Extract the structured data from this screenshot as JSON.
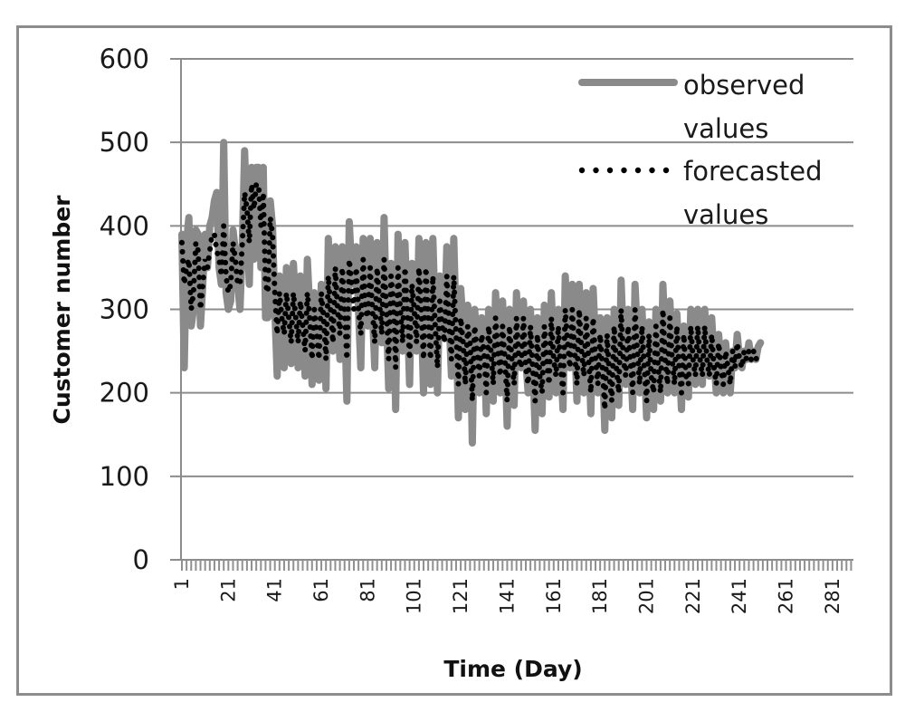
{
  "chart_data": {
    "type": "line",
    "title": "",
    "xlabel": "Time (Day)",
    "ylabel": "Customer number",
    "ylim": [
      0,
      600
    ],
    "yticks": [
      0,
      100,
      200,
      300,
      400,
      500,
      600
    ],
    "xlim": [
      1,
      290
    ],
    "xtick_labels": [
      "1",
      "21",
      "41",
      "61",
      "81",
      "101",
      "121",
      "141",
      "161",
      "181",
      "201",
      "221",
      "241",
      "261",
      "281"
    ],
    "grid": "horizontal",
    "legend_position": "upper right",
    "series": [
      {
        "name": "observed values",
        "style": "solid",
        "color": "#8a8a8a",
        "values": [
          390,
          230,
          380,
          410,
          280,
          300,
          395,
          390,
          280,
          330,
          390,
          350,
          400,
          410,
          430,
          440,
          350,
          330,
          500,
          320,
          300,
          310,
          395,
          370,
          330,
          300,
          380,
          490,
          400,
          330,
          470,
          360,
          470,
          470,
          350,
          470,
          290,
          290,
          430,
          400,
          300,
          220,
          340,
          300,
          230,
          350,
          300,
          235,
          355,
          300,
          230,
          340,
          290,
          220,
          360,
          300,
          210,
          320,
          285,
          215,
          330,
          300,
          205,
          385,
          300,
          250,
          375,
          300,
          240,
          375,
          300,
          190,
          405,
          350,
          330,
          375,
          300,
          230,
          385,
          300,
          280,
          385,
          300,
          230,
          380,
          320,
          260,
          410,
          300,
          205,
          355,
          320,
          180,
          390,
          300,
          250,
          380,
          300,
          210,
          355,
          300,
          250,
          385,
          300,
          200,
          380,
          300,
          210,
          385,
          290,
          200,
          340,
          300,
          270,
          375,
          290,
          220,
          385,
          280,
          170,
          325,
          280,
          180,
          305,
          280,
          140,
          300,
          260,
          200,
          290,
          260,
          175,
          300,
          260,
          190,
          320,
          260,
          200,
          310,
          250,
          160,
          300,
          250,
          185,
          320,
          250,
          230,
          310,
          240,
          200,
          300,
          240,
          155,
          290,
          230,
          175,
          305,
          260,
          195,
          320,
          250,
          200,
          300,
          240,
          180,
          340,
          280,
          230,
          330,
          270,
          190,
          330,
          270,
          200,
          320,
          260,
          175,
          325,
          260,
          200,
          290,
          240,
          155,
          290,
          230,
          170,
          300,
          240,
          185,
          335,
          260,
          210,
          300,
          250,
          180,
          330,
          270,
          200,
          300,
          240,
          170,
          285,
          230,
          180,
          300,
          240,
          190,
          330,
          260,
          200,
          310,
          250,
          200,
          295,
          240,
          180,
          280,
          230,
          195,
          300,
          250,
          210,
          300,
          250,
          210,
          300,
          250,
          220,
          290,
          240,
          200,
          270,
          230,
          200,
          260,
          230,
          200,
          250,
          230,
          270,
          240,
          230,
          250,
          240,
          260,
          240,
          250,
          240,
          255,
          260
        ],
        "note": "Approximate daily values read from plot"
      },
      {
        "name": "forecasted values",
        "style": "dotted",
        "color": "#000000",
        "values": [
          380,
          330,
          350,
          360,
          300,
          320,
          380,
          370,
          300,
          330,
          360,
          350,
          370,
          390,
          390,
          370,
          360,
          340,
          400,
          340,
          320,
          330,
          380,
          360,
          330,
          330,
          380,
          440,
          420,
          380,
          450,
          420,
          450,
          450,
          400,
          440,
          330,
          320,
          410,
          390,
          320,
          270,
          320,
          290,
          270,
          320,
          290,
          260,
          320,
          290,
          260,
          310,
          280,
          250,
          320,
          290,
          240,
          300,
          270,
          240,
          320,
          290,
          240,
          340,
          300,
          260,
          350,
          300,
          270,
          350,
          300,
          240,
          360,
          330,
          300,
          350,
          300,
          270,
          360,
          300,
          290,
          350,
          300,
          260,
          350,
          310,
          270,
          360,
          300,
          240,
          340,
          310,
          230,
          350,
          300,
          260,
          350,
          300,
          240,
          330,
          300,
          260,
          350,
          300,
          240,
          350,
          290,
          240,
          340,
          280,
          230,
          310,
          280,
          260,
          340,
          280,
          240,
          340,
          270,
          210,
          290,
          260,
          210,
          280,
          260,
          190,
          280,
          250,
          220,
          270,
          250,
          200,
          280,
          250,
          210,
          290,
          250,
          220,
          280,
          240,
          190,
          280,
          240,
          210,
          290,
          240,
          230,
          290,
          230,
          210,
          280,
          230,
          190,
          270,
          220,
          200,
          280,
          240,
          210,
          290,
          240,
          220,
          280,
          230,
          200,
          300,
          260,
          230,
          300,
          250,
          210,
          300,
          250,
          220,
          290,
          240,
          200,
          290,
          240,
          210,
          270,
          230,
          180,
          270,
          220,
          190,
          280,
          230,
          200,
          300,
          240,
          220,
          280,
          240,
          200,
          300,
          250,
          210,
          280,
          230,
          190,
          270,
          220,
          200,
          280,
          230,
          200,
          300,
          240,
          210,
          290,
          240,
          210,
          280,
          230,
          200,
          270,
          220,
          210,
          280,
          240,
          220,
          280,
          240,
          220,
          280,
          240,
          220,
          270,
          230,
          210,
          260,
          230,
          210,
          250,
          230,
          210,
          250,
          230,
          260,
          240,
          230,
          250,
          240,
          250,
          240,
          250,
          240,
          245,
          250
        ],
        "note": "Approximate daily values read from plot"
      }
    ]
  },
  "legend": {
    "items": [
      {
        "line1": "observed",
        "line2": "values"
      },
      {
        "line1": "forecasted",
        "line2": "values"
      }
    ]
  },
  "axes": {
    "y_title": "Customer number",
    "x_title": "Time (Day)",
    "y_tick_labels": [
      "0",
      "100",
      "200",
      "300",
      "400",
      "500",
      "600"
    ],
    "x_tick_labels": [
      "1",
      "21",
      "41",
      "61",
      "81",
      "101",
      "121",
      "141",
      "161",
      "181",
      "201",
      "221",
      "241",
      "261",
      "281"
    ]
  }
}
